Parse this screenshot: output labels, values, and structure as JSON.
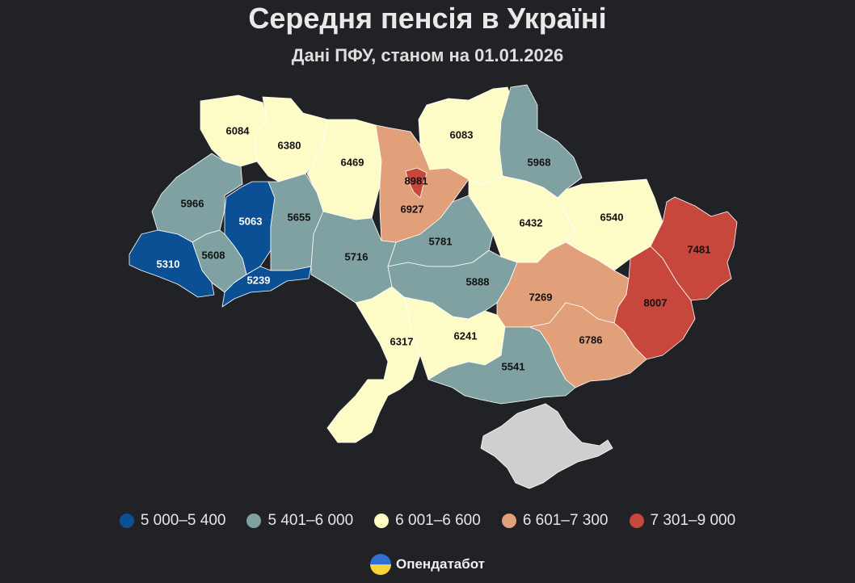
{
  "title": "Середня пенсія в Україні",
  "subtitle": "Дані ПФУ, станом на 01.01.2026",
  "colors": {
    "background": "#212226",
    "bin1": "#0b4f95",
    "bin2": "#7fa1a1",
    "bin3": "#fdfbc6",
    "bin4": "#e2a07a",
    "bin5": "#c8473d",
    "no_data": "#cfcfcf"
  },
  "legend": [
    {
      "label": "5 000–5 400",
      "color": "#0b4f95"
    },
    {
      "label": "5 401–6 000",
      "color": "#7fa1a1"
    },
    {
      "label": "6 001–6 600",
      "color": "#fdfbc6"
    },
    {
      "label": "6 601–7 300",
      "color": "#e2a07a"
    },
    {
      "label": "7 301–9 000",
      "color": "#c8473d"
    }
  ],
  "regions": [
    {
      "id": "volyn",
      "value": "6084"
    },
    {
      "id": "rivne",
      "value": "6380"
    },
    {
      "id": "zhytomyr",
      "value": "6469"
    },
    {
      "id": "kyiv-oblast",
      "value": "6927"
    },
    {
      "id": "kyiv-city",
      "value": "8981"
    },
    {
      "id": "chernihiv",
      "value": "6083"
    },
    {
      "id": "sumy",
      "value": "5968"
    },
    {
      "id": "lviv",
      "value": "5966"
    },
    {
      "id": "ternopil",
      "value": "5063"
    },
    {
      "id": "khmelnytskyi",
      "value": "5655"
    },
    {
      "id": "ivano-frankivsk",
      "value": "5608"
    },
    {
      "id": "zakarpattia",
      "value": "5310"
    },
    {
      "id": "chernivtsi",
      "value": "5239"
    },
    {
      "id": "vinnytsia",
      "value": "5716"
    },
    {
      "id": "cherkasy",
      "value": "5781"
    },
    {
      "id": "poltava",
      "value": "6432"
    },
    {
      "id": "kharkiv",
      "value": "6540"
    },
    {
      "id": "kirovohrad",
      "value": "5888"
    },
    {
      "id": "dnipropetrovsk",
      "value": "7269"
    },
    {
      "id": "luhansk",
      "value": "7481"
    },
    {
      "id": "donetsk",
      "value": "8007"
    },
    {
      "id": "zaporizhzhia",
      "value": "6786"
    },
    {
      "id": "odesa",
      "value": "6317"
    },
    {
      "id": "mykolaiv",
      "value": "6241"
    },
    {
      "id": "kherson",
      "value": "5541"
    },
    {
      "id": "crimea",
      "value": ""
    }
  ],
  "brand": {
    "name": "Опендатабот",
    "icon": "opendatabot-logo-icon"
  }
}
